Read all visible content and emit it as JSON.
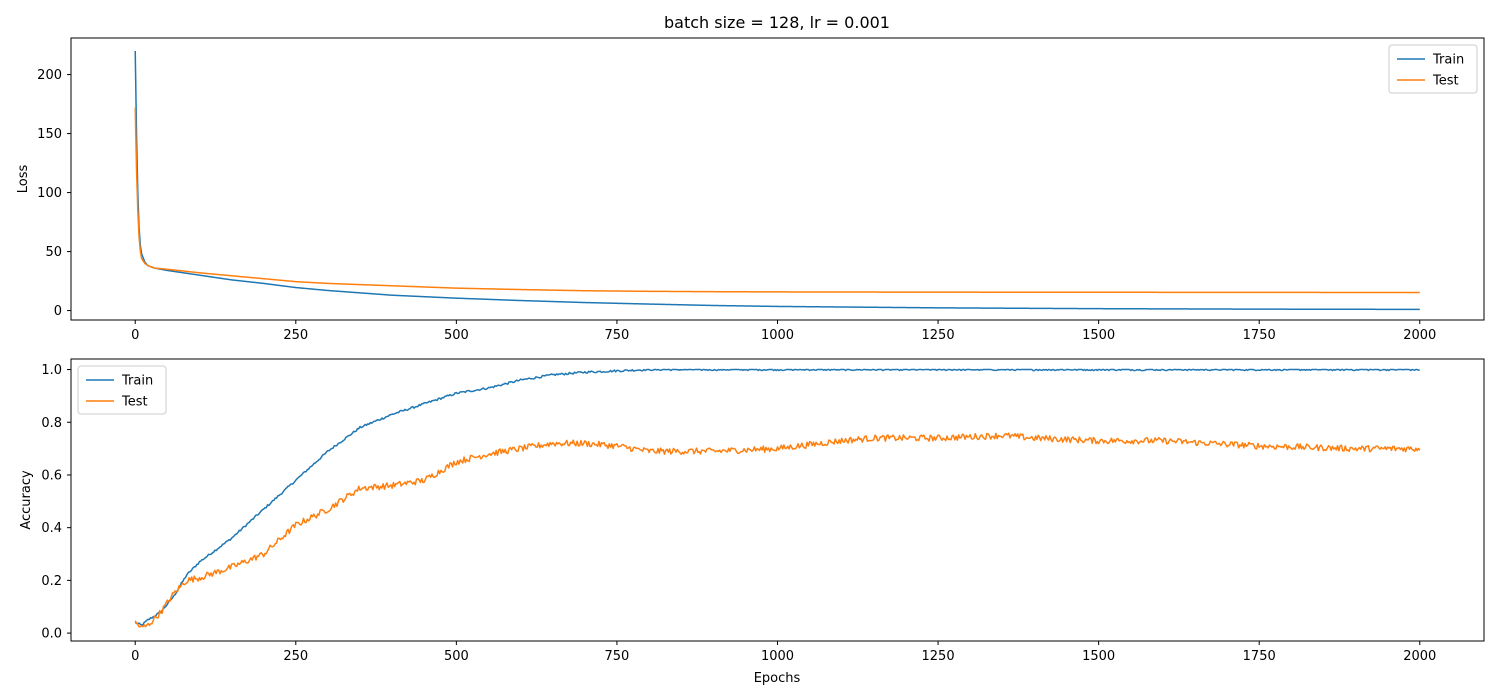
{
  "chart_data": [
    {
      "type": "line",
      "title": "batch size = 128, lr = 0.001",
      "xlabel": "",
      "ylabel": "Loss",
      "xlim": [
        -100,
        2100
      ],
      "ylim": [
        -8,
        231
      ],
      "xticks": [
        0,
        250,
        500,
        750,
        1000,
        1250,
        1500,
        1750,
        2000
      ],
      "yticks": [
        0,
        50,
        100,
        150,
        200
      ],
      "grid": false,
      "legend": "top-right",
      "series": [
        {
          "name": "Train",
          "color": "#1f77b4",
          "noise": 0,
          "x": [
            0,
            2,
            4,
            6,
            8,
            10,
            15,
            20,
            30,
            50,
            100,
            150,
            200,
            250,
            300,
            400,
            500,
            600,
            700,
            800,
            900,
            1000,
            1250,
            1500,
            1750,
            2000
          ],
          "y": [
            220,
            150,
            100,
            70,
            55,
            48,
            41,
            38,
            36,
            34,
            30,
            26,
            23,
            19.5,
            17,
            13,
            10.5,
            8.5,
            6.8,
            5.5,
            4.3,
            3.5,
            2.3,
            1.6,
            1.2,
            1.0
          ]
        },
        {
          "name": "Test",
          "color": "#ff7f0e",
          "noise": 0,
          "x": [
            0,
            2,
            4,
            6,
            8,
            10,
            15,
            20,
            30,
            50,
            100,
            150,
            200,
            250,
            300,
            400,
            500,
            600,
            700,
            800,
            900,
            1000,
            1250,
            1500,
            1750,
            2000
          ],
          "y": [
            172,
            120,
            85,
            62,
            50,
            44,
            40,
            38,
            36,
            35,
            32,
            29.5,
            27,
            24.5,
            23,
            21,
            19,
            17.8,
            16.8,
            16.3,
            16.0,
            15.8,
            15.6,
            15.5,
            15.4,
            15.3
          ]
        }
      ]
    },
    {
      "type": "line",
      "title": "",
      "xlabel": "Epochs",
      "ylabel": "Accuracy",
      "xlim": [
        -100,
        2100
      ],
      "ylim": [
        -0.03,
        1.04
      ],
      "xticks": [
        0,
        250,
        500,
        750,
        1000,
        1250,
        1500,
        1750,
        2000
      ],
      "yticks": [
        0.0,
        0.2,
        0.4,
        0.6,
        0.8,
        1.0
      ],
      "grid": false,
      "legend": "top-left",
      "series": [
        {
          "name": "Train",
          "color": "#1f77b4",
          "noise": 0.004,
          "x": [
            0,
            10,
            20,
            40,
            60,
            80,
            100,
            150,
            200,
            250,
            300,
            350,
            400,
            450,
            500,
            550,
            600,
            650,
            700,
            750,
            800,
            1000,
            1500,
            2000
          ],
          "y": [
            0.04,
            0.03,
            0.05,
            0.08,
            0.14,
            0.22,
            0.27,
            0.36,
            0.47,
            0.58,
            0.69,
            0.78,
            0.83,
            0.87,
            0.91,
            0.93,
            0.96,
            0.98,
            0.99,
            0.995,
            1.0,
            1.0,
            1.0,
            1.0
          ]
        },
        {
          "name": "Test",
          "color": "#ff7f0e",
          "noise": 0.012,
          "x": [
            0,
            10,
            20,
            40,
            60,
            80,
            100,
            150,
            200,
            250,
            300,
            350,
            400,
            450,
            500,
            550,
            600,
            650,
            700,
            750,
            800,
            900,
            1000,
            1100,
            1150,
            1250,
            1350,
            1400,
            1500,
            1600,
            1750,
            1900,
            2000
          ],
          "y": [
            0.04,
            0.02,
            0.03,
            0.08,
            0.15,
            0.2,
            0.21,
            0.25,
            0.3,
            0.41,
            0.47,
            0.55,
            0.56,
            0.58,
            0.65,
            0.68,
            0.7,
            0.72,
            0.72,
            0.71,
            0.69,
            0.69,
            0.7,
            0.73,
            0.74,
            0.74,
            0.75,
            0.74,
            0.73,
            0.73,
            0.71,
            0.7,
            0.7
          ]
        }
      ]
    }
  ]
}
